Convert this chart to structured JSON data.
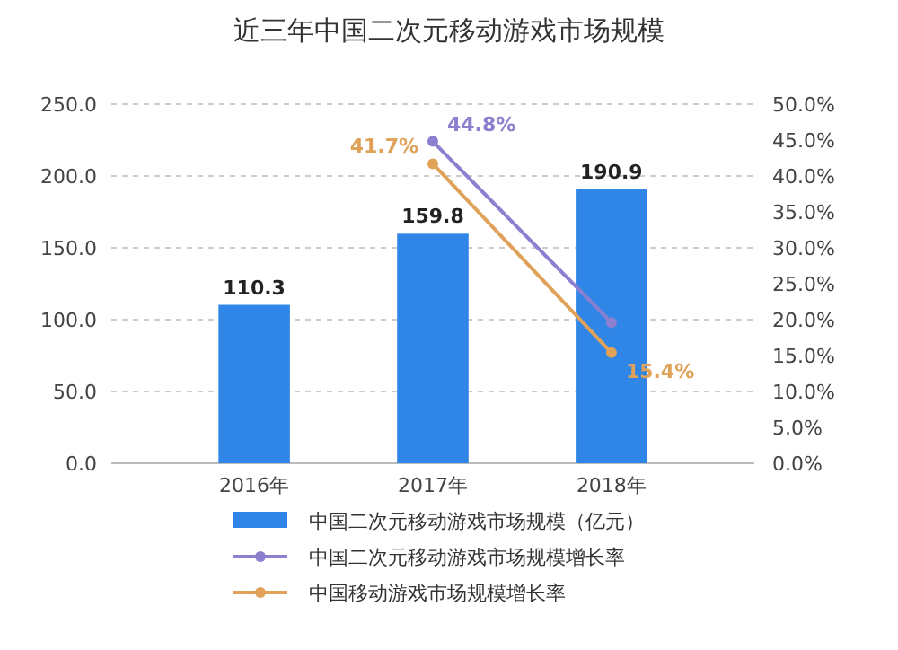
{
  "chart_data": {
    "type": "bar",
    "title": "近三年中国二次元移动游戏市场规模",
    "categories": [
      "2016年",
      "2017年",
      "2018年"
    ],
    "series": [
      {
        "name": "中国二次元移动游戏市场规模（亿元）",
        "color": "#2f86e6",
        "values": [
          110.3,
          159.8,
          190.9
        ],
        "value_labels": [
          "110.3",
          "159.8",
          "190.9"
        ]
      },
      {
        "name": "中国二次元移动游戏市场规模增长率",
        "type": "line",
        "axis": "y2",
        "color": "#8c7fd0",
        "values": [
          null,
          44.8,
          19.6
        ],
        "value_labels": [
          null,
          "44.8%",
          null
        ]
      },
      {
        "name": "中国移动游戏市场规模增长率",
        "type": "line",
        "axis": "y2",
        "color": "#e0a259",
        "values": [
          null,
          41.7,
          15.4
        ],
        "value_labels": [
          null,
          "41.7%",
          "15.4%"
        ]
      }
    ],
    "ylim": [
      0,
      250
    ],
    "yticks": [
      {
        "value": 0,
        "label": "0.0"
      },
      {
        "value": 50,
        "label": "50.0"
      },
      {
        "value": 100,
        "label": "100.0"
      },
      {
        "value": 150,
        "label": "150.0"
      },
      {
        "value": 200,
        "label": "200.0"
      },
      {
        "value": 250,
        "label": "250.0"
      }
    ],
    "y2lim": [
      0,
      50
    ],
    "y2ticks": [
      {
        "value": 0,
        "label": "0.0%"
      },
      {
        "value": 5,
        "label": "5.0%"
      },
      {
        "value": 10,
        "label": "10.0%"
      },
      {
        "value": 15,
        "label": "15.0%"
      },
      {
        "value": 20,
        "label": "20.0%"
      },
      {
        "value": 25,
        "label": "25.0%"
      },
      {
        "value": 30,
        "label": "30.0%"
      },
      {
        "value": 35,
        "label": "35.0%"
      },
      {
        "value": 40,
        "label": "40.0%"
      },
      {
        "value": 45,
        "label": "45.0%"
      },
      {
        "value": 50,
        "label": "50.0%"
      }
    ],
    "grid": "y",
    "legend": "bottom",
    "marker": "circle"
  }
}
